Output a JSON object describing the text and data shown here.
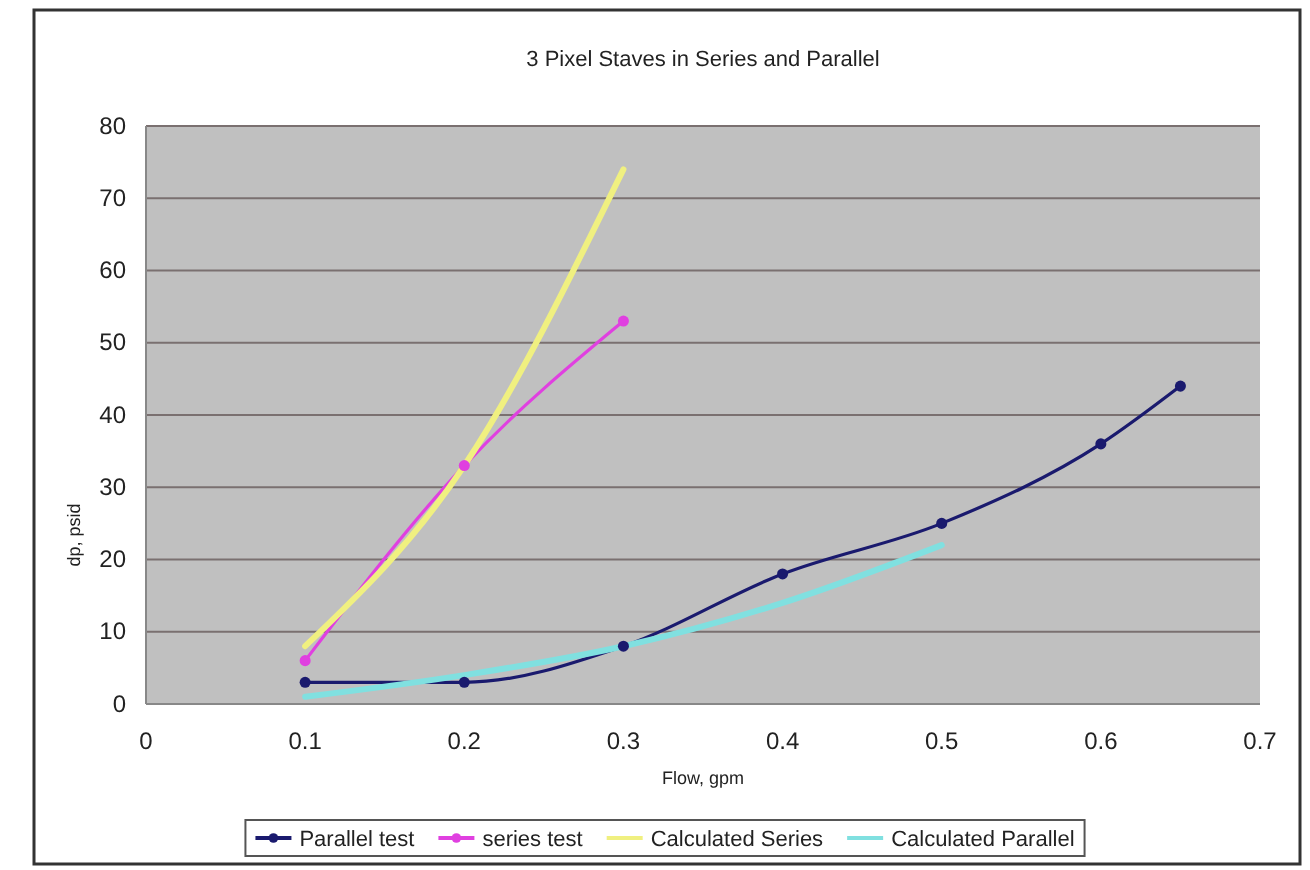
{
  "chart_data": {
    "type": "line",
    "title": "3 Pixel Staves in Series and Parallel",
    "xlabel": "Flow, gpm",
    "ylabel": "dp, psid",
    "xlim": [
      0,
      0.7
    ],
    "xticks": [
      0,
      0.1,
      0.2,
      0.3,
      0.4,
      0.5,
      0.6,
      0.7
    ],
    "ylim": [
      0,
      80
    ],
    "yticks": [
      0,
      10,
      20,
      30,
      40,
      50,
      60,
      70,
      80
    ],
    "grid": "y",
    "legend": "bottom",
    "series": [
      {
        "name": "Parallel test",
        "color": "#1a1a6e",
        "marker": "circle",
        "x": [
          0.1,
          0.2,
          0.3,
          0.4,
          0.5,
          0.6,
          0.65
        ],
        "values": [
          3,
          3,
          8,
          18,
          25,
          36,
          44
        ]
      },
      {
        "name": "series test",
        "color": "#e040e0",
        "marker": "circle",
        "x": [
          0.1,
          0.2,
          0.3
        ],
        "values": [
          6,
          33,
          53
        ]
      },
      {
        "name": "Calculated Series",
        "color": "#f0f080",
        "marker": "none",
        "x": [
          0.1,
          0.2,
          0.3
        ],
        "values": [
          8,
          33,
          74
        ]
      },
      {
        "name": "Calculated Parallel",
        "color": "#80e0e0",
        "marker": "none",
        "x": [
          0.1,
          0.2,
          0.3,
          0.4,
          0.5
        ],
        "values": [
          1,
          4,
          8,
          14,
          22
        ]
      }
    ]
  }
}
